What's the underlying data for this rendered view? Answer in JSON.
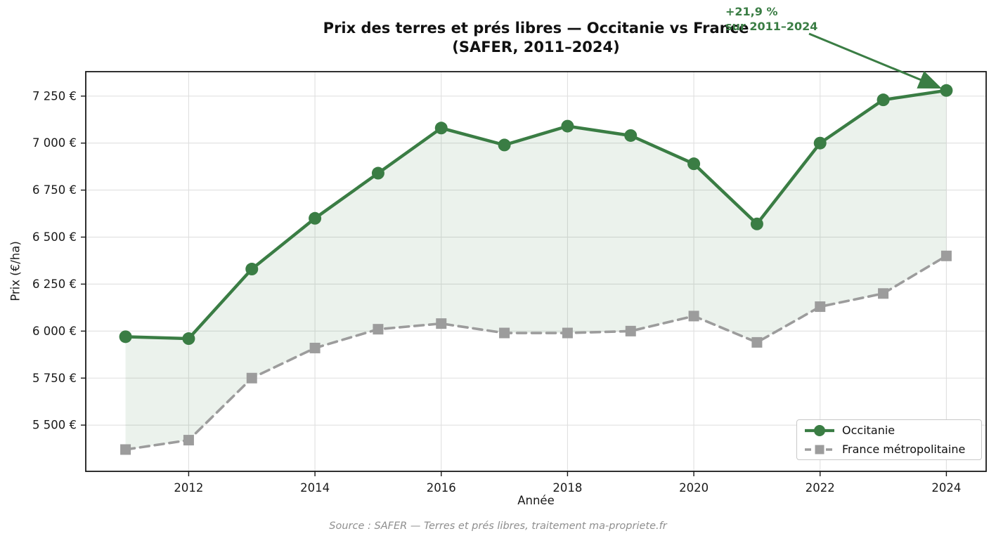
{
  "title": {
    "line1": "Prix des terres et prés libres — Occitanie vs France",
    "line2": "(SAFER, 2011–2024)"
  },
  "annotation": {
    "line1": "+21,9 %",
    "line2": "sur 2011–2024",
    "target_year": 2024,
    "target_series": "Occitanie"
  },
  "axes": {
    "x_label": "Année",
    "y_label": "Prix (€/ha)"
  },
  "footer": {
    "source": "Source : SAFER — Terres et prés libres, traitement ma-propriete.fr"
  },
  "colors": {
    "occitanie_green": "#3a7d44",
    "france_gray": "#9c9c9c",
    "fill_between": "rgba(58,125,68,0.10)",
    "annotation_text": "#3a7d44",
    "grid": "#e0e0e0",
    "spine": "#1a1a1a",
    "tick_label": "#1a1a1a",
    "footer_text": "#8f8f8f",
    "legend_border": "#c8c8c8"
  },
  "chart_data": {
    "type": "line",
    "x": [
      2011,
      2012,
      2013,
      2014,
      2015,
      2016,
      2017,
      2018,
      2019,
      2020,
      2021,
      2022,
      2023,
      2024
    ],
    "series": [
      {
        "name": "Occitanie",
        "color": "#3a7d44",
        "marker": "circle",
        "style": "solid",
        "values": [
          5970,
          5960,
          6330,
          6600,
          6840,
          7080,
          6990,
          7090,
          7040,
          6890,
          6570,
          7000,
          7230,
          7280
        ]
      },
      {
        "name": "France métropolitaine",
        "color": "#9c9c9c",
        "marker": "square",
        "style": "dashed",
        "values": [
          5370,
          5420,
          5750,
          5910,
          6010,
          6040,
          5990,
          5990,
          6000,
          6080,
          5940,
          6130,
          6200,
          6400
        ]
      }
    ],
    "fill_between_series": true,
    "title": "Prix des terres et prés libres — Occitanie vs France (SAFER, 2011–2024)",
    "xlabel": "Année",
    "ylabel": "Prix (€/ha)",
    "xlim": [
      2010.37,
      2024.63
    ],
    "ylim": [
      5254,
      7380
    ],
    "xticks": [
      2012,
      2014,
      2016,
      2018,
      2020,
      2022,
      2024
    ],
    "yticks": [
      5500,
      5750,
      6000,
      6250,
      6500,
      6750,
      7000,
      7250
    ],
    "ytick_suffix": " €",
    "grid": true,
    "legend_position": "lower right"
  }
}
